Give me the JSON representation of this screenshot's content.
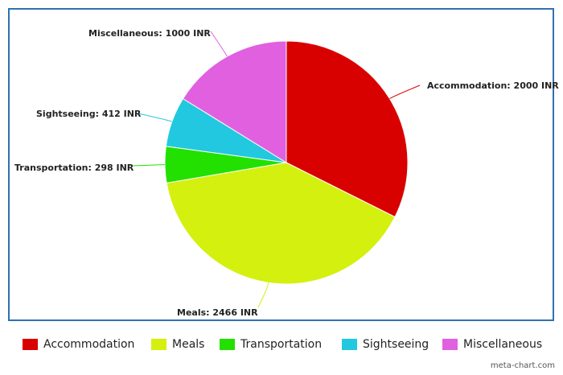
{
  "chart_data": {
    "type": "pie",
    "title": "",
    "slices": [
      {
        "label": "Accommodation",
        "value": 2000,
        "unit": "INR",
        "color": "#d90000"
      },
      {
        "label": "Meals",
        "value": 2466,
        "unit": "INR",
        "color": "#d4f00f"
      },
      {
        "label": "Transportation",
        "value": 298,
        "unit": "INR",
        "color": "#22e000"
      },
      {
        "label": "Sightseeing",
        "value": 412,
        "unit": "INR",
        "color": "#22c8e0"
      },
      {
        "label": "Miscellaneous",
        "value": 1000,
        "unit": "INR",
        "color": "#e060e0"
      }
    ],
    "data_labels": [
      "Accommodation: 2000 INR",
      "Meals: 2466 INR",
      "Transportation: 298 INR",
      "Sightseeing: 412 INR",
      "Miscellaneous: 1000 INR"
    ],
    "legend": {
      "placement": "bottom",
      "entries": [
        "Accommodation",
        "Meals",
        "Transportation",
        "Sightseeing",
        "Miscellaneous"
      ]
    },
    "start": "12 o'clock",
    "direction": "clockwise"
  },
  "watermark": "meta-chart.com"
}
